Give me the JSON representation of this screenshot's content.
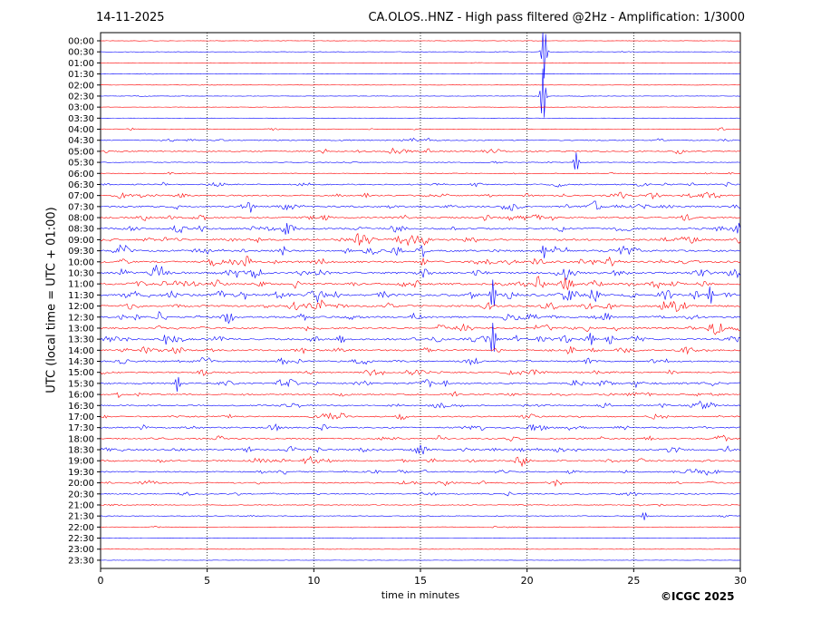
{
  "header": {
    "date": "14-11-2025",
    "title": "CA.OLOS..HNZ - High pass filtered @2Hz - Amplification: 1/3000"
  },
  "footer": {
    "copyright": "©ICGC 2025"
  },
  "chart_data": {
    "type": "line",
    "title": "CA.OLOS..HNZ - High pass filtered @2Hz - Amplification: 1/3000",
    "xlabel": "time in minutes",
    "ylabel": "UTC (local time = UTC + 01:00)",
    "xlim": [
      0,
      30
    ],
    "x_ticks": [
      0,
      5,
      10,
      15,
      20,
      25,
      30
    ],
    "x_gridlines": [
      5,
      10,
      15,
      20,
      25
    ],
    "grid": "vertical dotted",
    "row_labels": [
      "00:00",
      "00:30",
      "01:00",
      "01:30",
      "02:00",
      "02:30",
      "03:00",
      "03:30",
      "04:00",
      "04:30",
      "05:00",
      "05:30",
      "06:00",
      "06:30",
      "07:00",
      "07:30",
      "08:00",
      "08:30",
      "09:00",
      "09:30",
      "10:00",
      "10:30",
      "11:00",
      "11:30",
      "12:00",
      "12:30",
      "13:00",
      "13:30",
      "14:00",
      "14:30",
      "15:00",
      "15:30",
      "16:00",
      "16:30",
      "17:00",
      "17:30",
      "18:00",
      "18:30",
      "19:00",
      "19:30",
      "20:00",
      "20:30",
      "21:00",
      "21:30",
      "22:00",
      "22:30",
      "23:00",
      "23:30"
    ],
    "row_colors": [
      "#ff0000",
      "#0000ff"
    ],
    "activity": [
      0.05,
      0.08,
      0.05,
      0.1,
      0.05,
      0.08,
      0.05,
      0.05,
      0.25,
      0.4,
      0.5,
      0.2,
      0.2,
      0.5,
      0.6,
      0.7,
      0.65,
      0.75,
      0.8,
      0.85,
      0.85,
      0.9,
      0.9,
      1.0,
      0.85,
      0.8,
      0.7,
      0.85,
      0.7,
      0.65,
      0.6,
      0.7,
      0.55,
      0.55,
      0.55,
      0.6,
      0.55,
      0.75,
      0.65,
      0.55,
      0.5,
      0.4,
      0.25,
      0.2,
      0.15,
      0.1,
      0.08,
      0.05
    ],
    "events": [
      {
        "row": 1,
        "minute": 20.8,
        "amplitude": 2.4
      },
      {
        "row": 5,
        "minute": 20.75,
        "amplitude": 2.5
      },
      {
        "row": 11,
        "minute": 22.3,
        "amplitude": 0.9
      },
      {
        "row": 19,
        "minute": 20.8,
        "amplitude": 0.6
      },
      {
        "row": 23,
        "minute": 18.4,
        "amplitude": 1.4
      },
      {
        "row": 23,
        "minute": 28.6,
        "amplitude": 0.8
      },
      {
        "row": 27,
        "minute": 18.4,
        "amplitude": 1.6
      },
      {
        "row": 27,
        "minute": 23.0,
        "amplitude": 0.7
      },
      {
        "row": 31,
        "minute": 3.6,
        "amplitude": 0.7
      },
      {
        "row": 43,
        "minute": 25.5,
        "amplitude": 0.4
      }
    ]
  }
}
